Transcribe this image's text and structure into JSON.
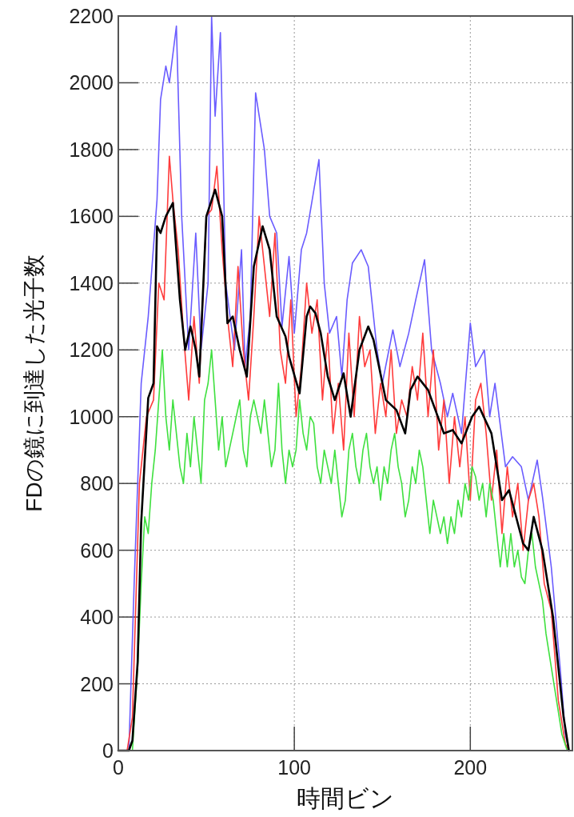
{
  "chart_data": {
    "type": "line",
    "xlabel": "時間ビン",
    "ylabel": "FDの鏡に到達した光子数",
    "xlim": [
      0,
      258
    ],
    "ylim": [
      0,
      2200
    ],
    "xticks": [
      0,
      100,
      200
    ],
    "yticks": [
      0,
      200,
      400,
      600,
      800,
      1000,
      1200,
      1400,
      1600,
      1800,
      2000,
      2200
    ],
    "grid": true,
    "line_style": "solid",
    "marker": "none",
    "series": [
      {
        "color": "#6a5cff",
        "x": [
          0,
          6,
          9,
          13,
          17,
          22,
          24,
          27,
          29,
          33,
          36,
          40,
          44,
          47,
          51,
          53,
          55,
          58,
          61,
          66,
          70,
          72,
          75,
          78,
          83,
          86,
          90,
          93,
          97,
          100,
          104,
          107,
          114,
          117,
          120,
          124,
          127,
          130,
          133,
          138,
          142,
          147,
          150,
          156,
          160,
          165,
          169,
          174,
          178,
          183,
          187,
          190,
          195,
          200,
          203,
          208,
          211,
          214,
          220,
          224,
          229,
          233,
          238,
          241,
          246,
          251,
          254,
          256
        ],
        "values": [
          0,
          0,
          500,
          1100,
          1300,
          1650,
          1950,
          2050,
          2000,
          2170,
          1600,
          1200,
          1550,
          1200,
          1400,
          2200,
          1900,
          2150,
          1400,
          1200,
          1500,
          1150,
          1300,
          1970,
          1800,
          1600,
          1550,
          1270,
          1480,
          1250,
          1500,
          1550,
          1770,
          1400,
          1250,
          1300,
          1120,
          1350,
          1460,
          1500,
          1450,
          1200,
          1100,
          1260,
          1150,
          1250,
          1350,
          1470,
          1200,
          1100,
          1000,
          1070,
          950,
          1280,
          1150,
          1200,
          1000,
          1100,
          850,
          880,
          850,
          750,
          870,
          760,
          550,
          250,
          50,
          0
        ]
      },
      {
        "color": "#ff3b3b",
        "x": [
          0,
          5,
          8,
          12,
          16,
          20,
          23,
          26,
          29,
          31,
          34,
          37,
          40,
          43,
          46,
          50,
          53,
          56,
          59,
          62,
          65,
          68,
          71,
          74,
          77,
          80,
          83,
          86,
          89,
          92,
          95,
          98,
          101,
          104,
          107,
          110,
          113,
          116,
          119,
          122,
          125,
          128,
          131,
          134,
          137,
          140,
          143,
          146,
          149,
          152,
          155,
          158,
          161,
          164,
          167,
          170,
          173,
          176,
          179,
          182,
          185,
          188,
          191,
          194,
          197,
          200,
          203,
          206,
          209,
          212,
          215,
          218,
          221,
          224,
          227,
          230,
          233,
          236,
          239,
          242,
          246,
          250,
          254,
          256
        ],
        "values": [
          0,
          0,
          100,
          800,
          1000,
          1050,
          1400,
          1350,
          1780,
          1650,
          1500,
          1250,
          1050,
          1300,
          1100,
          1600,
          1620,
          1750,
          1500,
          1300,
          1150,
          1450,
          1200,
          1050,
          1300,
          1600,
          1450,
          1300,
          1550,
          1200,
          1100,
          1350,
          1000,
          1150,
          1400,
          1250,
          1350,
          1050,
          1250,
          950,
          1100,
          900,
          1250,
          1000,
          1300,
          1150,
          1200,
          950,
          1100,
          1000,
          1200,
          950,
          1050,
          1000,
          1150,
          1050,
          1250,
          1000,
          1200,
          900,
          1050,
          800,
          1000,
          850,
          1000,
          750,
          1050,
          1100,
          950,
          750,
          900,
          650,
          850,
          700,
          800,
          600,
          750,
          800,
          700,
          500,
          420,
          150,
          20,
          0
        ]
      },
      {
        "color": "#3fe03f",
        "x": [
          0,
          8,
          11,
          13,
          15,
          17,
          19,
          21,
          23,
          25,
          27,
          29,
          31,
          33,
          35,
          37,
          39,
          41,
          43,
          45,
          47,
          49,
          51,
          53,
          55,
          57,
          59,
          61,
          63,
          65,
          67,
          69,
          71,
          73,
          75,
          77,
          79,
          81,
          83,
          85,
          87,
          89,
          91,
          93,
          95,
          97,
          99,
          101,
          103,
          105,
          107,
          109,
          111,
          113,
          115,
          117,
          119,
          121,
          123,
          125,
          127,
          129,
          131,
          133,
          135,
          137,
          139,
          141,
          143,
          145,
          147,
          149,
          151,
          153,
          155,
          157,
          159,
          161,
          163,
          165,
          167,
          169,
          171,
          173,
          175,
          177,
          179,
          181,
          183,
          185,
          187,
          189,
          191,
          193,
          195,
          197,
          199,
          201,
          203,
          205,
          207,
          209,
          211,
          213,
          215,
          217,
          219,
          221,
          223,
          225,
          227,
          229,
          231,
          233,
          235,
          237,
          239,
          241,
          243,
          246,
          249,
          252,
          255
        ],
        "values": [
          0,
          0,
          250,
          500,
          700,
          650,
          800,
          900,
          1050,
          1200,
          1000,
          900,
          1050,
          950,
          850,
          800,
          950,
          850,
          1000,
          900,
          800,
          1050,
          1100,
          1200,
          1050,
          900,
          1000,
          850,
          900,
          950,
          1000,
          1050,
          900,
          850,
          1000,
          1050,
          1000,
          950,
          1050,
          950,
          850,
          900,
          1100,
          900,
          800,
          900,
          850,
          900,
          1050,
          950,
          900,
          1000,
          980,
          850,
          800,
          900,
          850,
          800,
          900,
          800,
          700,
          750,
          900,
          950,
          850,
          800,
          900,
          950,
          850,
          800,
          850,
          750,
          850,
          800,
          900,
          950,
          850,
          800,
          700,
          750,
          850,
          800,
          900,
          850,
          750,
          650,
          750,
          700,
          650,
          700,
          620,
          700,
          650,
          750,
          700,
          800,
          750,
          850,
          820,
          750,
          800,
          700,
          800,
          750,
          650,
          550,
          650,
          550,
          650,
          550,
          600,
          520,
          500,
          600,
          650,
          550,
          500,
          450,
          350,
          250,
          150,
          50,
          0
        ]
      },
      {
        "color": "#000000",
        "x": [
          0,
          6,
          8,
          11,
          13,
          17,
          20,
          22,
          24,
          27,
          31,
          35,
          38,
          41,
          44,
          46,
          50,
          55,
          59,
          62,
          65,
          69,
          73,
          77,
          82,
          86,
          90,
          95,
          97,
          103,
          107,
          109,
          112,
          115,
          119,
          123,
          128,
          132,
          137,
          142,
          145,
          152,
          158,
          163,
          166,
          170,
          176,
          185,
          190,
          195,
          201,
          205,
          212,
          215,
          218,
          222,
          226,
          230,
          233,
          236,
          241,
          247,
          251,
          253,
          256
        ],
        "values": [
          0,
          0,
          30,
          266,
          683,
          1056,
          1100,
          1570,
          1550,
          1600,
          1640,
          1350,
          1200,
          1270,
          1200,
          1120,
          1600,
          1680,
          1600,
          1280,
          1300,
          1200,
          1120,
          1450,
          1570,
          1500,
          1300,
          1240,
          1180,
          1070,
          1300,
          1330,
          1310,
          1250,
          1120,
          1050,
          1130,
          1000,
          1200,
          1270,
          1230,
          1050,
          1020,
          950,
          1080,
          1120,
          1080,
          950,
          960,
          920,
          1000,
          1030,
          950,
          850,
          750,
          780,
          700,
          620,
          600,
          700,
          600,
          400,
          200,
          100,
          0
        ]
      }
    ]
  }
}
